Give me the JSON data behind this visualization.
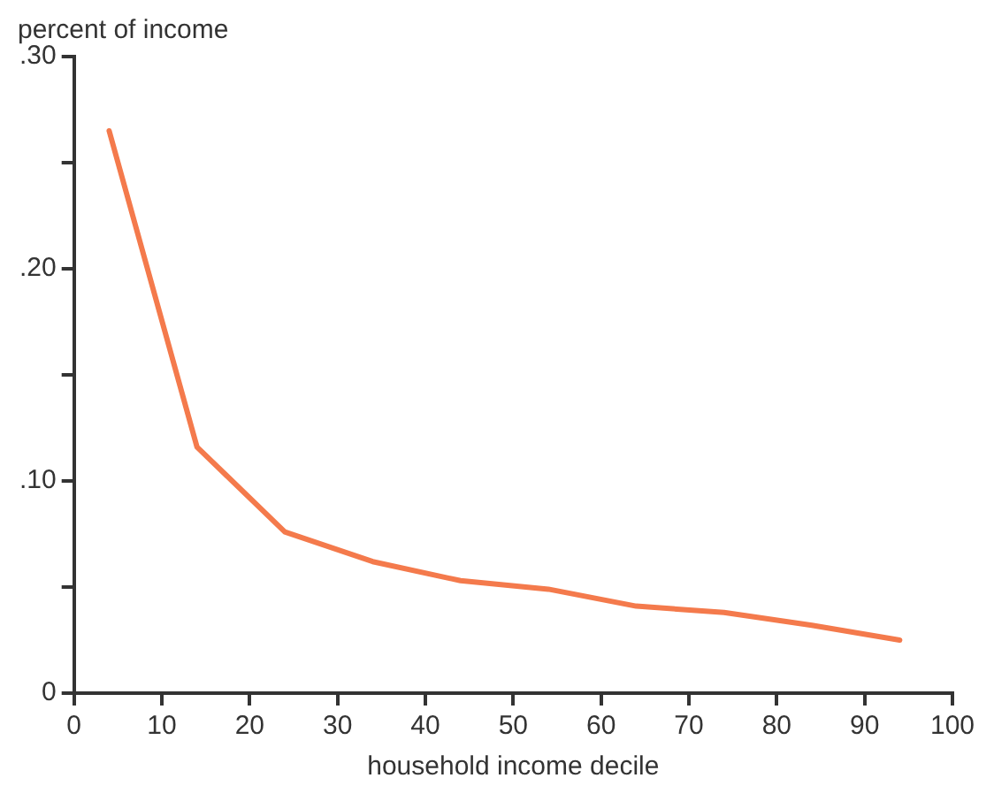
{
  "chart_data": {
    "type": "line",
    "ylabel": "percent of income",
    "xlabel": "household income decile",
    "x": [
      4,
      14,
      24,
      34,
      44,
      54,
      64,
      74,
      84,
      94
    ],
    "series": [
      {
        "color": "#f47a4c",
        "values": [
          0.265,
          0.116,
          0.076,
          0.062,
          0.053,
          0.049,
          0.041,
          0.038,
          0.032,
          0.025
        ]
      }
    ],
    "xlim": [
      0,
      100
    ],
    "xticks": [
      0,
      10,
      20,
      30,
      40,
      50,
      60,
      70,
      80,
      90,
      100
    ],
    "ylim": [
      0,
      0.3
    ],
    "yticks": [
      {
        "value": 0,
        "label": "0"
      },
      {
        "value": 0.05,
        "label": null
      },
      {
        "value": 0.1,
        "label": ".10"
      },
      {
        "value": 0.15,
        "label": null
      },
      {
        "value": 0.2,
        "label": ".20"
      },
      {
        "value": 0.25,
        "label": null
      },
      {
        "value": 0.3,
        "label": ".30"
      }
    ],
    "grid": false,
    "legend": false,
    "marker": "none",
    "line_style": "solid"
  }
}
